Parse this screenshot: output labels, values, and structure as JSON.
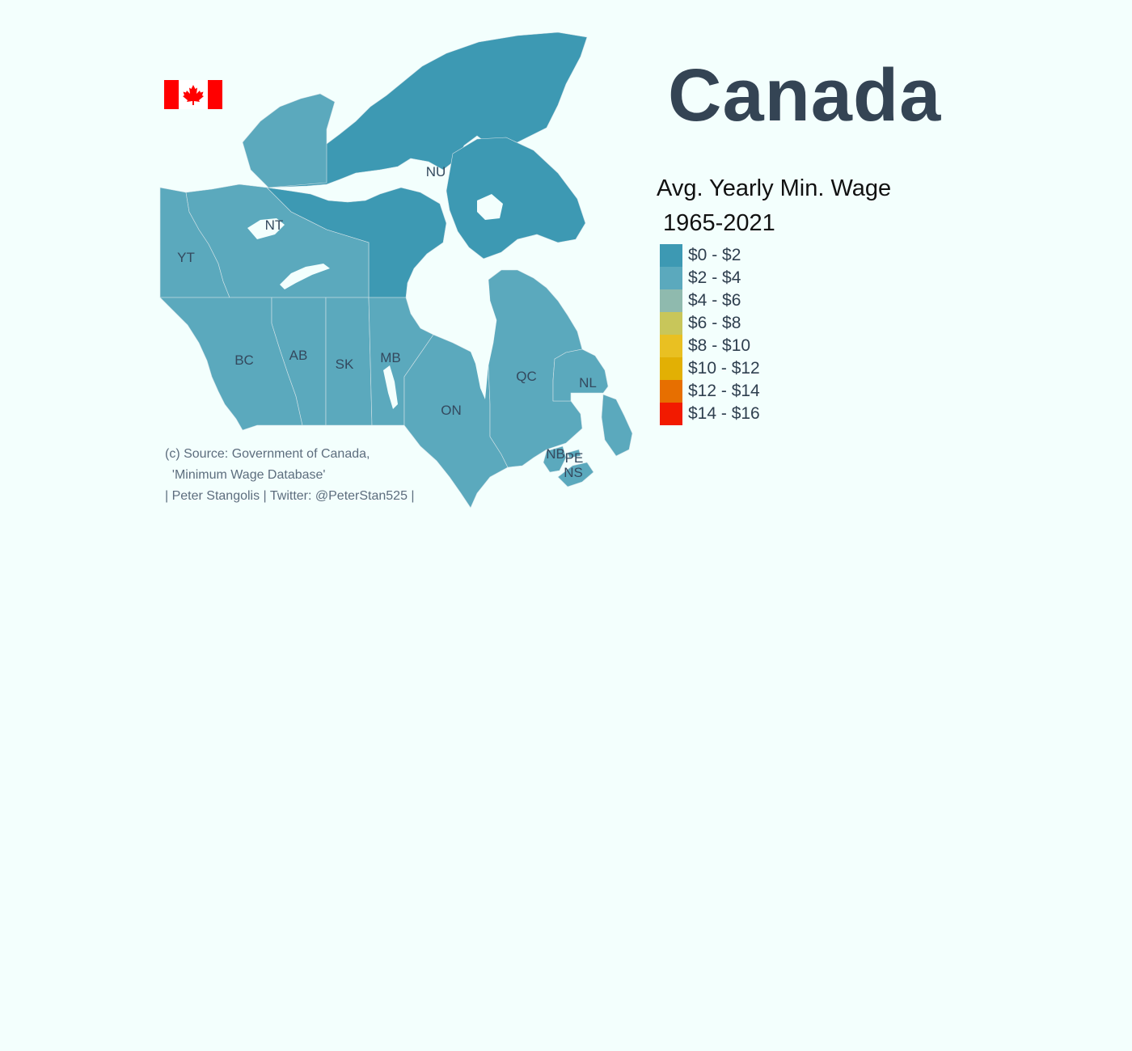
{
  "title": "Canada",
  "legend": {
    "title_line1": "Avg. Yearly Min. Wage",
    "title_line2": " 1965-2021",
    "items": [
      {
        "label": "$0 - $2",
        "color": "#3d99b3"
      },
      {
        "label": "$2 - $4",
        "color": "#5ba9bd"
      },
      {
        "label": "$4 - $6",
        "color": "#8fbaae"
      },
      {
        "label": "$6 - $8",
        "color": "#c8c65a"
      },
      {
        "label": "$8 - $10",
        "color": "#e9c022"
      },
      {
        "label": "$10 - $12",
        "color": "#e2b004"
      },
      {
        "label": "$12 - $14",
        "color": "#e76f00"
      },
      {
        "label": "$14 - $16",
        "color": "#f21a00"
      }
    ]
  },
  "provinces": [
    {
      "code": "YT",
      "bin": "$2 - $4"
    },
    {
      "code": "NT",
      "bin": "$2 - $4"
    },
    {
      "code": "NU",
      "bin": "$0 - $2"
    },
    {
      "code": "BC",
      "bin": "$2 - $4"
    },
    {
      "code": "AB",
      "bin": "$2 - $4"
    },
    {
      "code": "SK",
      "bin": "$2 - $4"
    },
    {
      "code": "MB",
      "bin": "$2 - $4"
    },
    {
      "code": "ON",
      "bin": "$2 - $4"
    },
    {
      "code": "QC",
      "bin": "$2 - $4"
    },
    {
      "code": "NL",
      "bin": "$2 - $4"
    },
    {
      "code": "NB",
      "bin": "$2 - $4"
    },
    {
      "code": "PE",
      "bin": "$2 - $4"
    },
    {
      "code": "NS",
      "bin": "$2 - $4"
    }
  ],
  "caption": {
    "line1": "(c) Source: Government of Canada,",
    "line2": "  'Minimum Wage Database'",
    "line3": "| Peter Stangolis | Twitter: @PeterStan525 |"
  },
  "flag": {
    "colors": {
      "red": "#ff0000",
      "white": "#ffffff"
    }
  },
  "background_color": "#f3fffd"
}
